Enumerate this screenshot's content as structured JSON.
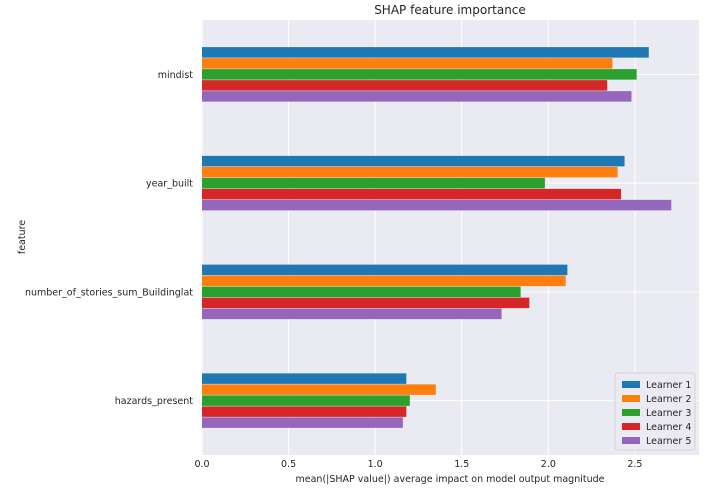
{
  "chart_data": {
    "type": "bar",
    "orientation": "horizontal",
    "title": "SHAP feature importance",
    "xlabel": "mean(|SHAP value|) average impact on model output magnitude",
    "ylabel": "feature",
    "xlim": [
      0,
      2.87
    ],
    "xticks": [
      "0.0",
      "0.5",
      "1.0",
      "1.5",
      "2.0",
      "2.5"
    ],
    "grid": true,
    "legend_position": "lower-right",
    "categories": [
      "mindist",
      "year_built",
      "number_of_stories_sum_Buildinglat",
      "hazards_present"
    ],
    "series": [
      {
        "name": "Learner 1",
        "color": "#1f77b4",
        "values": [
          2.58,
          2.44,
          2.11,
          1.18
        ]
      },
      {
        "name": "Learner 2",
        "color": "#ff7f0e",
        "values": [
          2.37,
          2.4,
          2.1,
          1.35
        ]
      },
      {
        "name": "Learner 3",
        "color": "#2ca02c",
        "values": [
          2.51,
          1.98,
          1.84,
          1.2
        ]
      },
      {
        "name": "Learner 4",
        "color": "#d62728",
        "values": [
          2.34,
          2.42,
          1.89,
          1.18
        ]
      },
      {
        "name": "Learner 5",
        "color": "#9467bd",
        "values": [
          2.48,
          2.71,
          1.73,
          1.16
        ]
      }
    ]
  }
}
